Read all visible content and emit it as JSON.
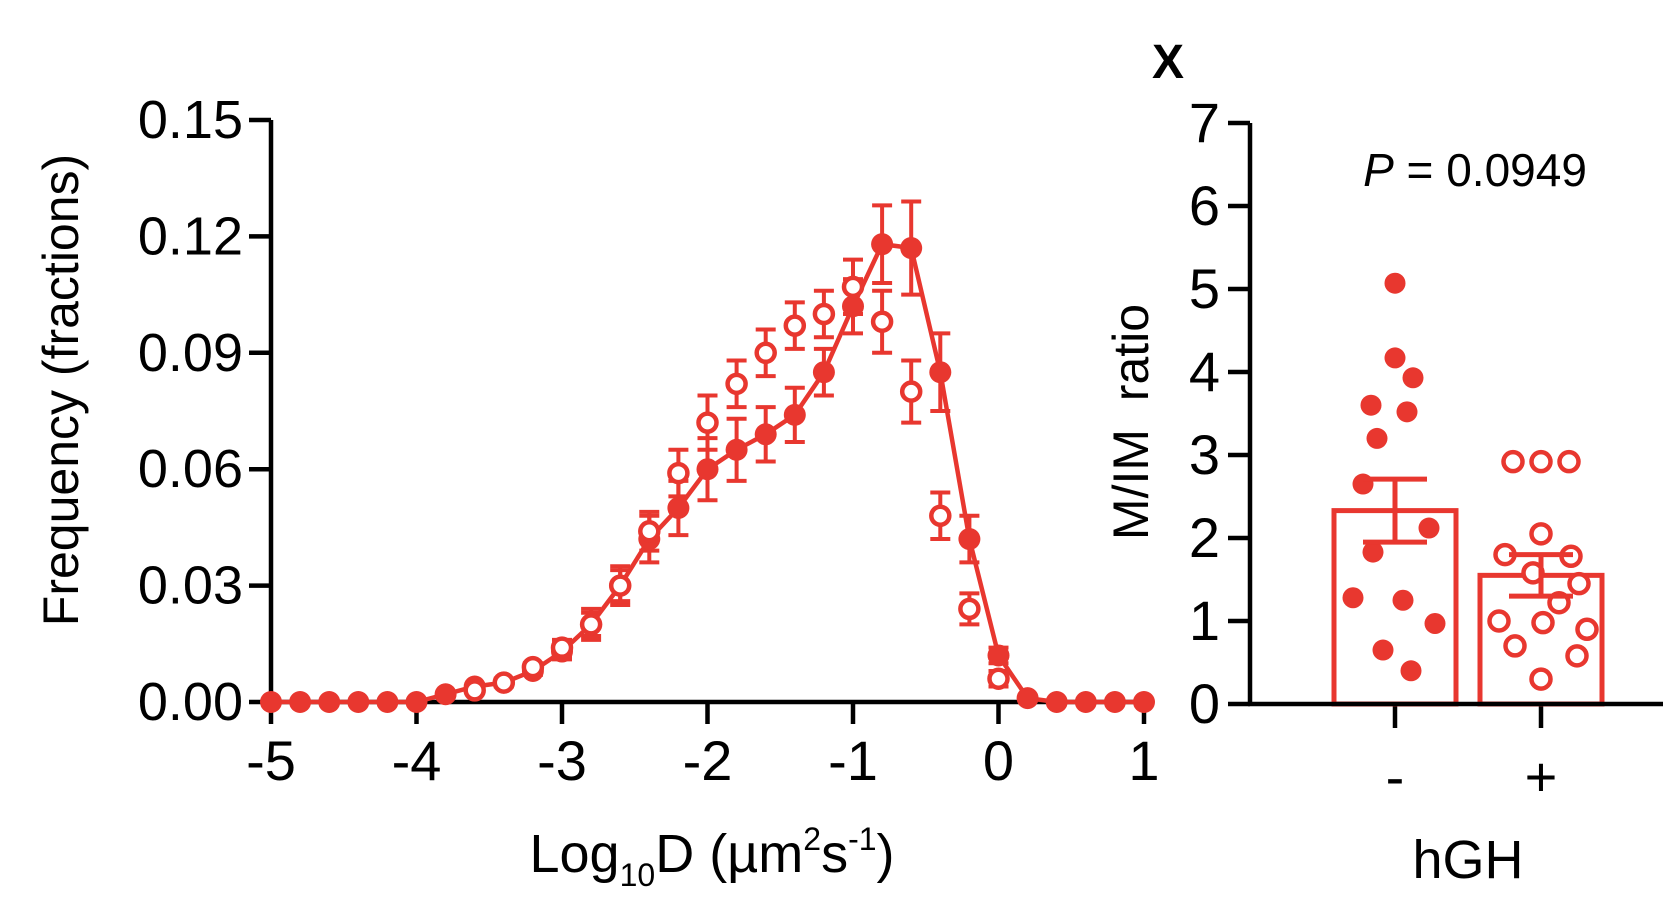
{
  "panel_label": "X",
  "colors": {
    "series": "#e8372f",
    "axis": "#000000"
  },
  "chart_data": [
    {
      "type": "line",
      "xlabel_parts": {
        "main": "Log",
        "sub": "10",
        "after": "D (µm",
        "sup1": "2",
        "mid": "s",
        "sup2": "-1",
        "end": ")"
      },
      "ylabel": "Frequency (fractions)",
      "xlim": [
        -5,
        1
      ],
      "ylim": [
        0,
        0.15
      ],
      "x_ticks": [
        "-5",
        "-4",
        "-3",
        "-2",
        "-1",
        "0",
        "1"
      ],
      "y_ticks": [
        "0.00",
        "0.03",
        "0.06",
        "0.09",
        "0.12",
        "0.15"
      ],
      "series": [
        {
          "marker": "filled",
          "line": true,
          "x": [
            -5.0,
            -4.8,
            -4.6,
            -4.4,
            -4.2,
            -4.0,
            -3.8,
            -3.6,
            -3.4,
            -3.2,
            -3.0,
            -2.8,
            -2.6,
            -2.4,
            -2.2,
            -2.0,
            -1.8,
            -1.6,
            -1.4,
            -1.2,
            -1.0,
            -0.8,
            -0.6,
            -0.4,
            -0.2,
            0.0,
            0.2,
            0.4,
            0.6,
            0.8,
            1.0
          ],
          "y": [
            0,
            0,
            0,
            0,
            0,
            0,
            0.002,
            0.004,
            0.005,
            0.008,
            0.013,
            0.02,
            0.03,
            0.042,
            0.05,
            0.06,
            0.065,
            0.069,
            0.074,
            0.085,
            0.102,
            0.118,
            0.117,
            0.085,
            0.042,
            0.012,
            0.001,
            0,
            0,
            0,
            0
          ],
          "err": [
            0,
            0,
            0,
            0,
            0,
            0,
            0,
            0,
            0,
            0.001,
            0.002,
            0.004,
            0.005,
            0.006,
            0.007,
            0.008,
            0.008,
            0.007,
            0.007,
            0.006,
            0.007,
            0.01,
            0.012,
            0.01,
            0.006,
            0.002,
            0,
            0,
            0,
            0,
            0
          ]
        },
        {
          "marker": "open",
          "line": false,
          "x": [
            -3.6,
            -3.4,
            -3.2,
            -3.0,
            -2.8,
            -2.6,
            -2.4,
            -2.2,
            -2.0,
            -1.8,
            -1.6,
            -1.4,
            -1.2,
            -1.0,
            -0.8,
            -0.6,
            -0.4,
            -0.2,
            0.0
          ],
          "y": [
            0.003,
            0.005,
            0.009,
            0.014,
            0.02,
            0.03,
            0.044,
            0.059,
            0.072,
            0.082,
            0.09,
            0.097,
            0.1,
            0.107,
            0.098,
            0.08,
            0.048,
            0.024,
            0.006
          ],
          "err": [
            0,
            0.001,
            0.001,
            0.002,
            0.003,
            0.004,
            0.005,
            0.006,
            0.007,
            0.006,
            0.006,
            0.006,
            0.006,
            0.007,
            0.008,
            0.008,
            0.006,
            0.004,
            0.002
          ]
        }
      ]
    },
    {
      "type": "bar",
      "ylabel": "M/IM  ratio",
      "xlabel": "hGH",
      "annotation_italic": "P",
      "annotation_rest": " = 0.0949",
      "ylim": [
        0,
        7
      ],
      "y_ticks": [
        "0",
        "1",
        "2",
        "3",
        "4",
        "5",
        "6",
        "7"
      ],
      "categories": [
        "-",
        "+"
      ],
      "values": [
        2.33,
        1.55
      ],
      "sem": [
        0.38,
        0.25
      ],
      "points": [
        [
          5.07,
          4.17,
          3.93,
          3.6,
          3.52,
          3.2,
          2.65,
          2.12,
          1.83,
          1.28,
          1.25,
          0.97,
          0.65,
          0.4
        ],
        [
          2.92,
          2.92,
          2.92,
          2.05,
          1.8,
          1.78,
          1.58,
          1.45,
          1.22,
          1.0,
          0.98,
          0.9,
          0.7,
          0.58,
          0.3
        ]
      ],
      "point_marker": [
        "filled",
        "open"
      ]
    }
  ]
}
